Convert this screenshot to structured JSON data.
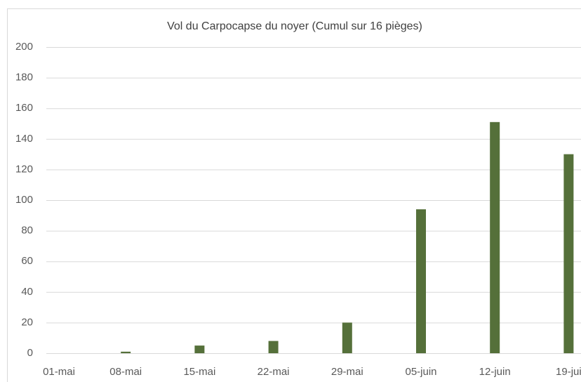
{
  "chart_data": {
    "type": "bar",
    "title": "Vol du Carpocapse du noyer (Cumul sur 16 pièges)",
    "categories": [
      "01-mai",
      "08-mai",
      "15-mai",
      "22-mai",
      "29-mai",
      "05-juin",
      "12-juin",
      "19-jui"
    ],
    "values": [
      0,
      1,
      5,
      8,
      20,
      94,
      151,
      130
    ],
    "color": "#55703a",
    "ylim": [
      0,
      200
    ],
    "yticks": [
      0,
      20,
      40,
      60,
      80,
      100,
      120,
      140,
      160,
      180,
      200
    ],
    "grid": true
  }
}
